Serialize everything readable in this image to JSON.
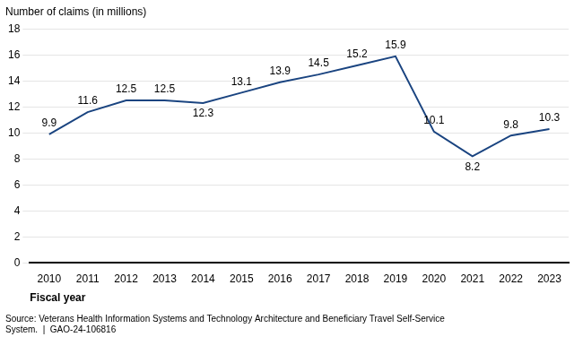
{
  "chart_data": {
    "type": "line",
    "ylabel": "Number of claims (in millions)",
    "xlabel": "Fiscal year",
    "source": "Source: Veterans Health Information Systems and Technology Architecture and Beneficiary Travel Self-Service\nSystem.  |  GAO-24-106816",
    "x": [
      2010,
      2011,
      2012,
      2013,
      2014,
      2015,
      2016,
      2017,
      2018,
      2019,
      2020,
      2021,
      2022,
      2023
    ],
    "values": [
      9.9,
      11.6,
      12.5,
      12.5,
      12.3,
      13.1,
      13.9,
      14.5,
      15.2,
      15.9,
      10.1,
      8.2,
      9.8,
      10.3
    ],
    "color": "#1a4480",
    "xlim": [
      2009.5,
      2023.5
    ],
    "xticks": [
      2010,
      2011,
      2012,
      2013,
      2014,
      2015,
      2016,
      2017,
      2018,
      2019,
      2020,
      2021,
      2022,
      2023
    ],
    "ylim": [
      0,
      18
    ],
    "yticks": [
      0,
      2,
      4,
      6,
      8,
      10,
      12,
      14,
      16,
      18
    ],
    "grid": "y",
    "data_labels": true
  }
}
